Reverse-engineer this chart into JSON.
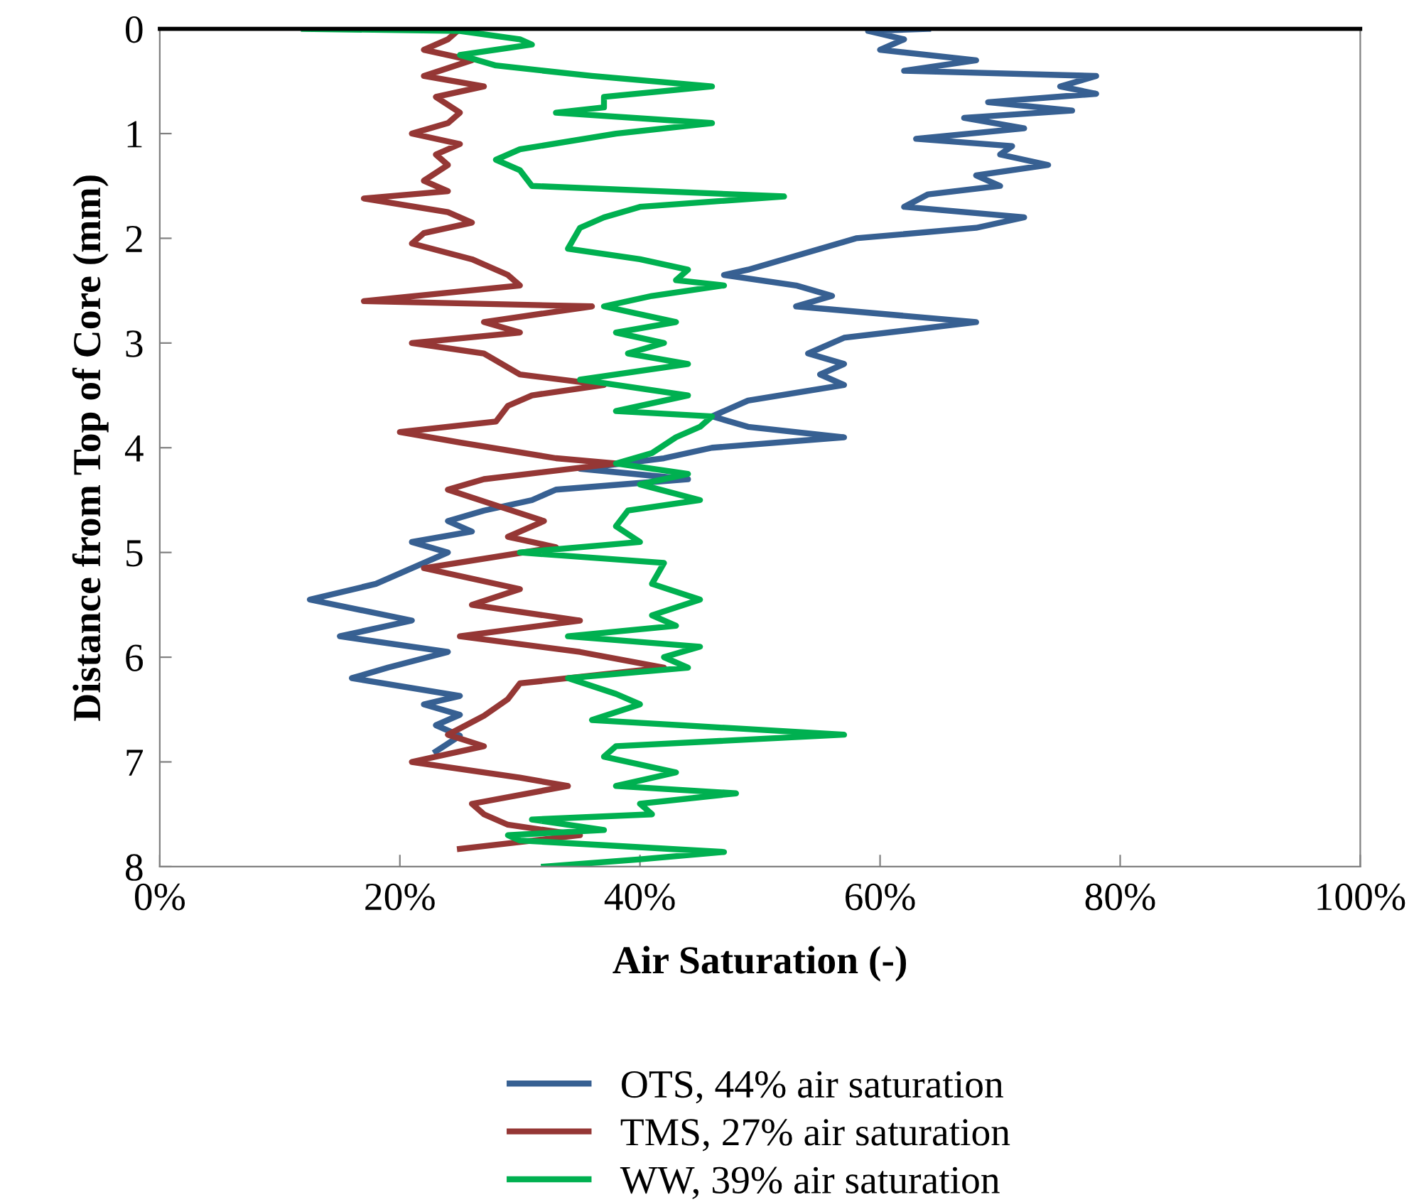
{
  "chart_data": {
    "type": "line",
    "xlabel": "Air Saturation (-)",
    "ylabel": "Distance from Top of Core (mm)",
    "xlim": [
      0,
      100
    ],
    "xticks": [
      {
        "value": 0,
        "label": "0%"
      },
      {
        "value": 20,
        "label": "20%"
      },
      {
        "value": 40,
        "label": "40%"
      },
      {
        "value": 60,
        "label": "60%"
      },
      {
        "value": 80,
        "label": "80%"
      },
      {
        "value": 100,
        "label": "100%"
      }
    ],
    "ylim": [
      8,
      0
    ],
    "yticks": [
      0,
      1,
      2,
      3,
      4,
      5,
      6,
      7,
      8
    ],
    "grid": false,
    "legend": "bottom",
    "marker": "none",
    "line_style": "solid",
    "series": [
      {
        "name": "OTS, 44% air saturation",
        "color": "#376092",
        "x": [
          64,
          59,
          62,
          60,
          68,
          62,
          78,
          75,
          78,
          69,
          76,
          67,
          72,
          63,
          71,
          70,
          74,
          68,
          70,
          64,
          62,
          72,
          68,
          58,
          55,
          52,
          49,
          47,
          53,
          56,
          53,
          68,
          57,
          54,
          57,
          55,
          57,
          49,
          46,
          49,
          57,
          46,
          42,
          35,
          44,
          33,
          31,
          27,
          24,
          26,
          21,
          24,
          22,
          18,
          12.5,
          21,
          15,
          24,
          19,
          16,
          25,
          22,
          25,
          23,
          25,
          23
        ],
        "values": [
          0,
          0.02,
          0.1,
          0.2,
          0.3,
          0.4,
          0.45,
          0.55,
          0.62,
          0.7,
          0.78,
          0.85,
          0.95,
          1.05,
          1.12,
          1.2,
          1.3,
          1.4,
          1.5,
          1.58,
          1.7,
          1.8,
          1.9,
          2.0,
          2.1,
          2.2,
          2.3,
          2.35,
          2.45,
          2.55,
          2.65,
          2.8,
          2.95,
          3.1,
          3.2,
          3.3,
          3.4,
          3.55,
          3.7,
          3.8,
          3.9,
          4.0,
          4.1,
          4.2,
          4.3,
          4.4,
          4.5,
          4.6,
          4.7,
          4.8,
          4.9,
          5.0,
          5.1,
          5.3,
          5.45,
          5.65,
          5.8,
          5.95,
          6.1,
          6.2,
          6.37,
          6.45,
          6.55,
          6.65,
          6.75,
          6.9
        ]
      },
      {
        "name": "TMS, 27% air saturation",
        "color": "#953735",
        "x": [
          25,
          24,
          22,
          26,
          22,
          27,
          23,
          25,
          24,
          21,
          25,
          23,
          24,
          22,
          24,
          17,
          24,
          26,
          22,
          21,
          26,
          29,
          30,
          17,
          36,
          27,
          30,
          21,
          27,
          30,
          37,
          31,
          29,
          28,
          20,
          25,
          33,
          38,
          27,
          24,
          28,
          32,
          29,
          33,
          22,
          30,
          26,
          35,
          25,
          35,
          42,
          30,
          29,
          27,
          24,
          27,
          21,
          30,
          34,
          26,
          27,
          29,
          35,
          25
        ],
        "values": [
          0,
          0.1,
          0.2,
          0.3,
          0.45,
          0.55,
          0.65,
          0.8,
          0.9,
          1.0,
          1.1,
          1.2,
          1.3,
          1.45,
          1.55,
          1.62,
          1.75,
          1.85,
          1.95,
          2.05,
          2.2,
          2.35,
          2.45,
          2.6,
          2.65,
          2.8,
          2.9,
          3.0,
          3.1,
          3.3,
          3.4,
          3.5,
          3.6,
          3.75,
          3.85,
          3.95,
          4.1,
          4.15,
          4.3,
          4.4,
          4.55,
          4.7,
          4.85,
          4.95,
          5.15,
          5.35,
          5.5,
          5.65,
          5.8,
          5.95,
          6.1,
          6.25,
          6.4,
          6.56,
          6.74,
          6.85,
          7.0,
          7.15,
          7.23,
          7.4,
          7.5,
          7.6,
          7.7,
          7.83
        ]
      },
      {
        "name": "WW, 39% air saturation",
        "color": "#00b050",
        "x": [
          12,
          25,
          30,
          31,
          25,
          28,
          36,
          46,
          37,
          37,
          33,
          46,
          38,
          30,
          28,
          30,
          31,
          52,
          40,
          37,
          35,
          34,
          40,
          44,
          43,
          47,
          41,
          37,
          43,
          38,
          42,
          39,
          44,
          35,
          44,
          38,
          46,
          45,
          43,
          41,
          38,
          44,
          40,
          45,
          39,
          38,
          40,
          30,
          42,
          41,
          45,
          41,
          43,
          34,
          45,
          42,
          44,
          34,
          38,
          40,
          36,
          57,
          38,
          37,
          43,
          38,
          48,
          40,
          41,
          31,
          37,
          29,
          30,
          47,
          40,
          32
        ],
        "values": [
          0,
          0.02,
          0.1,
          0.15,
          0.25,
          0.35,
          0.45,
          0.55,
          0.65,
          0.75,
          0.8,
          0.9,
          1.0,
          1.15,
          1.25,
          1.35,
          1.5,
          1.6,
          1.7,
          1.8,
          1.9,
          2.1,
          2.2,
          2.3,
          2.4,
          2.45,
          2.55,
          2.65,
          2.8,
          2.9,
          3.0,
          3.1,
          3.2,
          3.35,
          3.5,
          3.65,
          3.7,
          3.8,
          3.9,
          4.05,
          4.15,
          4.25,
          4.35,
          4.5,
          4.6,
          4.75,
          4.9,
          5.0,
          5.1,
          5.3,
          5.45,
          5.6,
          5.7,
          5.8,
          5.9,
          6.0,
          6.1,
          6.2,
          6.35,
          6.45,
          6.6,
          6.74,
          6.85,
          6.95,
          7.1,
          7.23,
          7.3,
          7.4,
          7.5,
          7.55,
          7.65,
          7.7,
          7.75,
          7.86,
          7.93,
          8.0
        ]
      }
    ]
  }
}
